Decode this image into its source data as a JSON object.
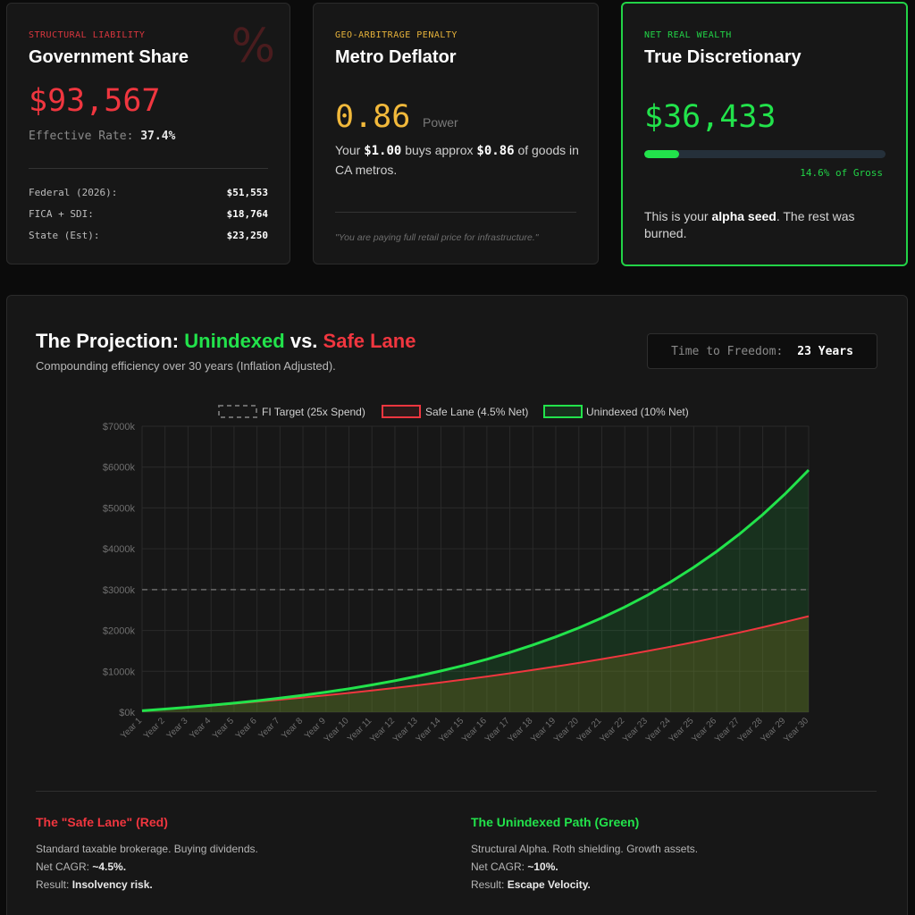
{
  "cards": {
    "government": {
      "eyebrow": "STRUCTURAL LIABILITY",
      "title": "Government Share",
      "icon": "percent-icon",
      "value": "$93,567",
      "rate_label": "Effective Rate:",
      "rate_value": "37.4%",
      "rows": [
        {
          "label": "Federal (2026):",
          "value": "$51,553"
        },
        {
          "label": "FICA + SDI:",
          "value": "$18,764"
        },
        {
          "label": "State (Est):",
          "value": "$23,250"
        }
      ]
    },
    "deflator": {
      "eyebrow": "GEO-ARBITRAGE PENALTY",
      "title": "Metro Deflator",
      "value": "0.86",
      "unit": "Power",
      "desc_pre": "Your ",
      "desc_amount1": "$1.00",
      "desc_mid": " buys approx ",
      "desc_amount2": "$0.86",
      "desc_post": " of goods in CA metros.",
      "quote": "\"You are paying full retail price for infrastructure.\""
    },
    "discretionary": {
      "eyebrow": "NET REAL WEALTH",
      "title": "True Discretionary",
      "value": "$36,433",
      "progress_fraction": 0.146,
      "progress_label": "14.6% of Gross",
      "desc_pre": "This is your ",
      "desc_bold": "alpha seed",
      "desc_post": ". The rest was burned."
    }
  },
  "projection": {
    "title_pre": "The Projection: ",
    "title_green": "Unindexed",
    "title_mid": " vs. ",
    "title_red": "Safe Lane",
    "subtitle": "Compounding efficiency over 30 years (Inflation Adjusted).",
    "freedom_label": "Time to Freedom:",
    "freedom_value": "23 Years",
    "footer": {
      "red": {
        "title": "The \"Safe Lane\" (Red)",
        "desc": "Standard taxable brokerage. Buying dividends.",
        "cagr_label": "Net CAGR: ",
        "cagr_value": "~4.5%.",
        "result_label": "Result: ",
        "result_value": "Insolvency risk."
      },
      "green": {
        "title": "The Unindexed Path (Green)",
        "desc": "Structural Alpha. Roth shielding. Growth assets.",
        "cagr_label": "Net CAGR: ",
        "cagr_value": "~10%.",
        "result_label": "Result: ",
        "result_value": "Escape Velocity."
      }
    }
  },
  "colors": {
    "red": "#f0363f",
    "green": "#22e34b",
    "gold": "#f2b93b",
    "target": "#6a6a6a"
  },
  "chart_data": {
    "type": "line",
    "x": [
      "Year 1",
      "Year 2",
      "Year 3",
      "Year 4",
      "Year 5",
      "Year 6",
      "Year 7",
      "Year 8",
      "Year 9",
      "Year 10",
      "Year 11",
      "Year 12",
      "Year 13",
      "Year 14",
      "Year 15",
      "Year 16",
      "Year 17",
      "Year 18",
      "Year 19",
      "Year 20",
      "Year 21",
      "Year 22",
      "Year 23",
      "Year 24",
      "Year 25",
      "Year 26",
      "Year 27",
      "Year 28",
      "Year 29",
      "Year 30"
    ],
    "series": [
      {
        "name": "FI Target (25x Spend)",
        "style": "dashed",
        "values": [
          3000,
          3000,
          3000,
          3000,
          3000,
          3000,
          3000,
          3000,
          3000,
          3000,
          3000,
          3000,
          3000,
          3000,
          3000,
          3000,
          3000,
          3000,
          3000,
          3000,
          3000,
          3000,
          3000,
          3000,
          3000,
          3000,
          3000,
          3000,
          3000,
          3000
        ]
      },
      {
        "name": "Safe Lane (4.5% Net)",
        "values": [
          36,
          76,
          118,
          162,
          208,
          256,
          306,
          358,
          413,
          470,
          530,
          593,
          658,
          727,
          798,
          873,
          951,
          1032,
          1117,
          1206,
          1299,
          1396,
          1498,
          1604,
          1715,
          1831,
          1952,
          2079,
          2211,
          2349
        ]
      },
      {
        "name": "Unindexed (10% Net)",
        "values": [
          36,
          76,
          120,
          168,
          221,
          279,
          343,
          413,
          490,
          574,
          668,
          771,
          884,
          1008,
          1145,
          1296,
          1461,
          1644,
          1844,
          2064,
          2307,
          2574,
          2867,
          3190,
          3545,
          3935,
          4365,
          4837,
          5357,
          5928
        ]
      }
    ],
    "ylim": [
      0,
      7000
    ],
    "yticks": [
      "$0k",
      "$1000k",
      "$2000k",
      "$3000k",
      "$4000k",
      "$5000k",
      "$6000k",
      "$7000k"
    ],
    "grid": true,
    "legend": "top-center"
  }
}
